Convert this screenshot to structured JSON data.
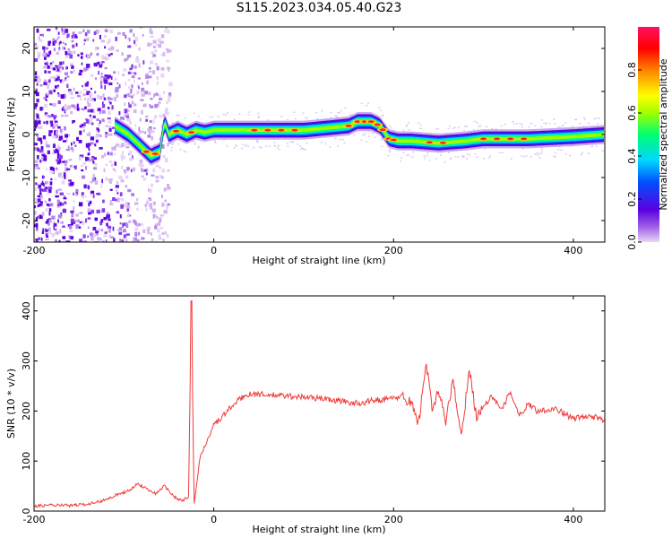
{
  "title": "S115.2023.034.05.40.G23",
  "chart_data": [
    {
      "type": "heatmap",
      "title": "S115.2023.034.05.40.G23",
      "xlabel": "Height of straight line (km)",
      "ylabel": "Frequency (Hz)",
      "xlim": [
        -200,
        435
      ],
      "ylim": [
        -25,
        25
      ],
      "xticks": [
        -200,
        0,
        200,
        400
      ],
      "yticks": [
        -20,
        -10,
        0,
        10,
        20
      ],
      "ridge": {
        "x": [
          -110,
          -95,
          -80,
          -70,
          -60,
          -55,
          -50,
          -40,
          -30,
          -20,
          -10,
          0,
          50,
          100,
          150,
          160,
          175,
          185,
          195,
          205,
          220,
          250,
          280,
          300,
          350,
          400,
          435
        ],
        "frequency": [
          2,
          0,
          -3,
          -5,
          -4,
          3,
          0,
          1,
          0,
          1,
          0.5,
          1,
          1,
          1,
          2,
          3,
          3,
          2,
          -1,
          -1.5,
          -1.5,
          -2,
          -1.5,
          -1,
          -1,
          -0.5,
          0
        ]
      },
      "colorbar": {
        "label": "Normalized spectral amplitude",
        "range": [
          0,
          1
        ],
        "ticks": [
          0.0,
          0.2,
          0.4,
          0.6,
          0.8
        ]
      }
    },
    {
      "type": "line",
      "xlabel": "Height of straight line (km)",
      "ylabel": "SNR (10 * v/v)",
      "xlim": [
        -200,
        435
      ],
      "ylim": [
        0,
        430
      ],
      "xticks": [
        -200,
        0,
        200,
        400
      ],
      "yticks": [
        0,
        100,
        200,
        300,
        400
      ],
      "color": "#f03a3a",
      "series": [
        {
          "name": "SNR",
          "x": [
            -200,
            -180,
            -160,
            -140,
            -125,
            -115,
            -105,
            -95,
            -85,
            -75,
            -65,
            -55,
            -45,
            -35,
            -28,
            -25,
            -22,
            -20,
            -18,
            -15,
            -10,
            -5,
            0,
            5,
            10,
            20,
            30,
            40,
            60,
            80,
            100,
            120,
            140,
            160,
            180,
            200,
            210,
            220,
            228,
            236,
            243,
            250,
            258,
            266,
            276,
            284,
            292,
            300,
            310,
            320,
            330,
            340,
            350,
            360,
            380,
            400,
            420,
            435
          ],
          "y": [
            10,
            12,
            11,
            14,
            20,
            28,
            35,
            40,
            55,
            45,
            35,
            50,
            30,
            20,
            30,
            420,
            15,
            40,
            70,
            110,
            130,
            150,
            175,
            180,
            190,
            210,
            225,
            235,
            232,
            230,
            228,
            225,
            220,
            215,
            222,
            225,
            230,
            215,
            175,
            300,
            200,
            240,
            180,
            260,
            150,
            290,
            190,
            210,
            230,
            200,
            240,
            190,
            215,
            200,
            205,
            185,
            190,
            180
          ]
        }
      ]
    }
  ]
}
